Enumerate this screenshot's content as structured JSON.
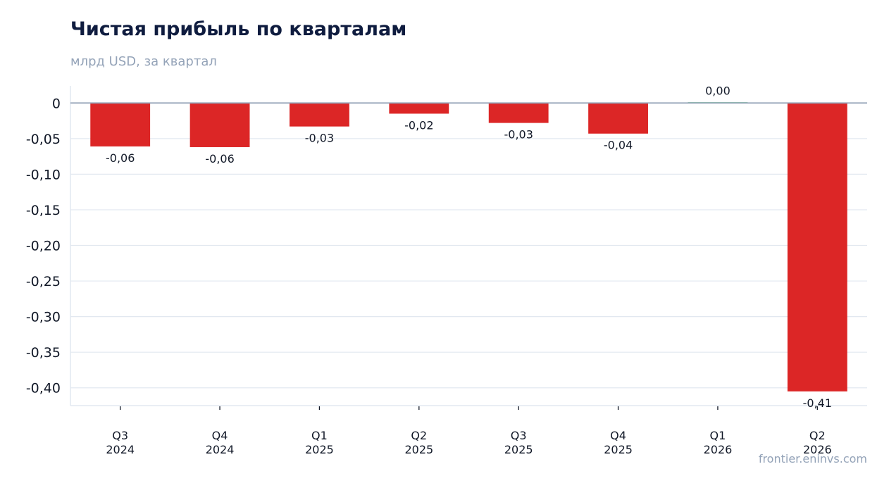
{
  "header": {
    "title": "Чистая прибыль по кварталам",
    "subtitle": "млрд USD, за квартал"
  },
  "watermark": "frontier.eninvs.com",
  "colors": {
    "negative": "#dc2626",
    "positive": "#16a34a",
    "grid": "#e2e8f0",
    "zero_line": "#94a3b8",
    "axis": "#e2e8f0"
  },
  "chart_data": {
    "type": "bar",
    "title": "Чистая прибыль по кварталам",
    "subtitle": "млрд USD, за квартал",
    "xlabel": "",
    "ylabel": "",
    "categories": [
      [
        "Q3",
        "2024"
      ],
      [
        "Q4",
        "2024"
      ],
      [
        "Q1",
        "2025"
      ],
      [
        "Q2",
        "2025"
      ],
      [
        "Q3",
        "2025"
      ],
      [
        "Q4",
        "2025"
      ],
      [
        "Q1",
        "2026"
      ],
      [
        "Q2",
        "2026"
      ]
    ],
    "values": [
      -0.061,
      -0.062,
      -0.033,
      -0.015,
      -0.028,
      -0.043,
      0.001,
      -0.405
    ],
    "value_labels": [
      "-0,06",
      "-0,06",
      "-0,03",
      "-0,02",
      "-0,03",
      "-0,04",
      "0,00",
      "-0,41"
    ],
    "ylim": [
      -0.425,
      0.024
    ],
    "yticks": [
      0,
      -0.05,
      -0.1,
      -0.15,
      -0.2,
      -0.25,
      -0.3,
      -0.35,
      -0.4
    ],
    "ytick_labels": [
      "0",
      "-0,05",
      "-0,10",
      "-0,15",
      "-0,20",
      "-0,25",
      "-0,30",
      "-0,35",
      "-0,40"
    ],
    "grid": true,
    "legend": "none"
  }
}
